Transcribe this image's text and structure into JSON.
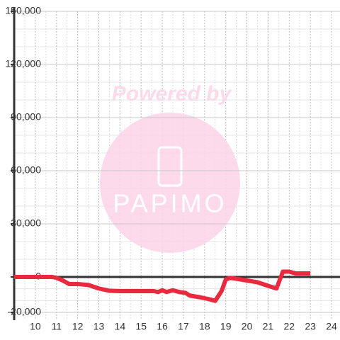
{
  "chart_data": {
    "type": "line",
    "watermark": {
      "line1": "Powered by",
      "line2": "PAPIMO"
    },
    "x": [
      9,
      10.8,
      11,
      11.3,
      11.6,
      12,
      12.5,
      13,
      13.5,
      14,
      15,
      15.6,
      15.8,
      16,
      16.2,
      16.5,
      16.8,
      17.1,
      17.3,
      17.8,
      18.2,
      18.5,
      18.8,
      19,
      19.2,
      19.5,
      20,
      20.5,
      21,
      21.4,
      21.7,
      22,
      22.3,
      23
    ],
    "series": [
      {
        "color": "#e8293e",
        "values": [
          0,
          0,
          -500,
          -2000,
          -4000,
          -4000,
          -4500,
          -6500,
          -7800,
          -8000,
          -8000,
          -8000,
          -8500,
          -7500,
          -8500,
          -7500,
          -8500,
          -9000,
          -10500,
          -11500,
          -12500,
          -13500,
          -8000,
          -1500,
          -500,
          -1000,
          -2000,
          -3000,
          -5000,
          -6500,
          3000,
          3000,
          2000,
          2000
        ]
      }
    ],
    "xlim": [
      9,
      24.4
    ],
    "xticks": [
      10,
      11,
      12,
      13,
      14,
      15,
      16,
      17,
      18,
      19,
      20,
      21,
      22,
      23,
      24
    ],
    "ylim": [
      -24400,
      150000
    ],
    "yticks": [
      {
        "value": -20000,
        "label": "-20,000"
      },
      0,
      {
        "value": 30000,
        "label": "30,000"
      },
      {
        "value": 60000,
        "label": "60,000"
      },
      {
        "value": 90000,
        "label": "90,000"
      },
      {
        "value": 120000,
        "label": "120,000"
      },
      {
        "value": 150000,
        "label": "150,000"
      }
    ],
    "grid": true
  }
}
